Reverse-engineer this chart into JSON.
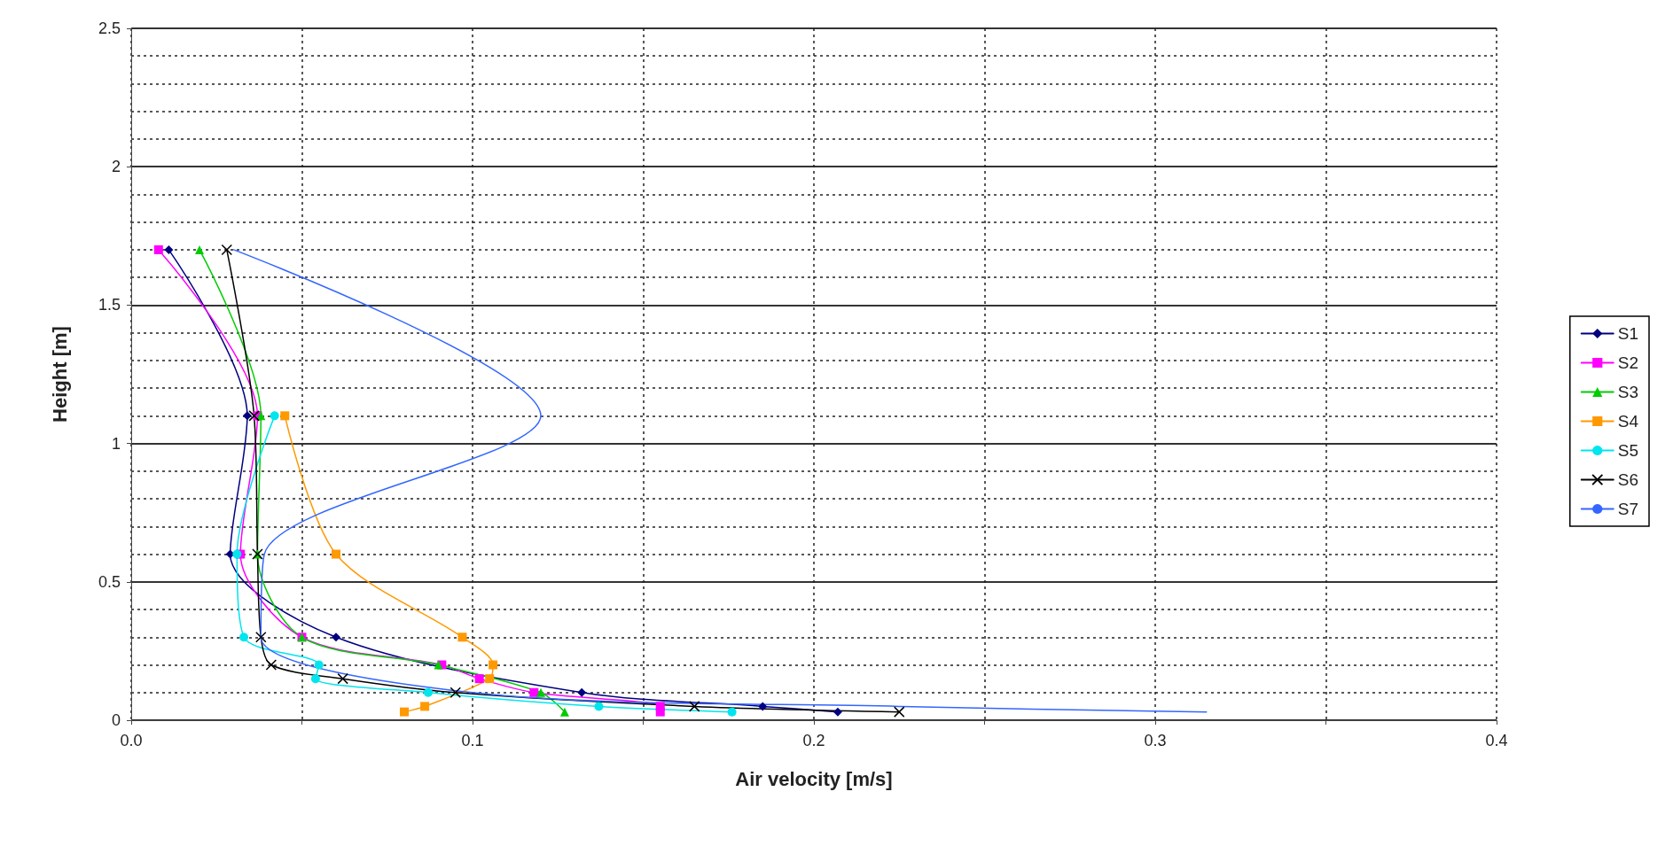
{
  "chart_data": {
    "type": "line",
    "xlabel": "Air velocity [m/s]",
    "ylabel": "Height [m]",
    "xlim": [
      0,
      0.4
    ],
    "xticks": [
      {
        "value": 0,
        "label": "0.0"
      },
      {
        "value": 0.05,
        "label": null
      },
      0.1,
      {
        "value": 0.15,
        "label": null
      },
      0.2,
      {
        "value": 0.25,
        "label": null
      },
      0.3,
      {
        "value": 0.35,
        "label": null
      },
      0.4
    ],
    "ylim": [
      0,
      2.5
    ],
    "yticks": [
      0,
      0.5,
      1,
      1.5,
      2,
      2.5
    ],
    "grid": true,
    "legend": "right",
    "line_style": "solid",
    "series": [
      {
        "name": "S1",
        "color": "#000080",
        "marker": "diamond",
        "x": [
          0.011,
          0.034,
          0.029,
          0.06,
          0.132,
          0.185,
          0.207
        ],
        "values": [
          1.7,
          1.1,
          0.6,
          0.3,
          0.1,
          0.05,
          0.03
        ]
      },
      {
        "name": "S2",
        "color": "#ff00ff",
        "marker": "square",
        "x": [
          0.008,
          0.037,
          0.032,
          0.05,
          0.091,
          0.102,
          0.118,
          0.155,
          0.155
        ],
        "values": [
          1.7,
          1.1,
          0.6,
          0.3,
          0.2,
          0.15,
          0.1,
          0.05,
          0.03
        ]
      },
      {
        "name": "S3",
        "color": "#00cc00",
        "marker": "triangle",
        "x": [
          0.02,
          0.038,
          0.037,
          0.05,
          0.09,
          0.12,
          0.127
        ],
        "values": [
          1.7,
          1.1,
          0.6,
          0.3,
          0.2,
          0.1,
          0.03
        ]
      },
      {
        "name": "S4",
        "color": "#ff9900",
        "marker": "square",
        "x": [
          0.045,
          0.06,
          0.097,
          0.106,
          0.105,
          0.086,
          0.08
        ],
        "values": [
          1.1,
          0.6,
          0.3,
          0.2,
          0.15,
          0.05,
          0.03
        ]
      },
      {
        "name": "S5",
        "color": "#00e5ee",
        "marker": "circle",
        "x": [
          0.042,
          0.031,
          0.033,
          0.055,
          0.054,
          0.087,
          0.137,
          0.176
        ],
        "values": [
          1.1,
          0.6,
          0.3,
          0.2,
          0.15,
          0.1,
          0.05,
          0.03
        ]
      },
      {
        "name": "S6",
        "color": "#000000",
        "marker": "cross",
        "x": [
          0.028,
          0.036,
          0.037,
          0.038,
          0.041,
          0.062,
          0.095,
          0.165,
          0.225
        ],
        "values": [
          1.7,
          1.1,
          0.6,
          0.3,
          0.2,
          0.15,
          0.1,
          0.05,
          0.03
        ]
      },
      {
        "name": "S7",
        "color": "#3366ff",
        "marker": "none",
        "x": [
          0.03,
          0.12,
          0.039,
          0.038,
          0.1,
          0.225,
          0.315
        ],
        "values": [
          1.7,
          1.1,
          0.6,
          0.3,
          0.1,
          0.05,
          0.03
        ]
      }
    ]
  }
}
